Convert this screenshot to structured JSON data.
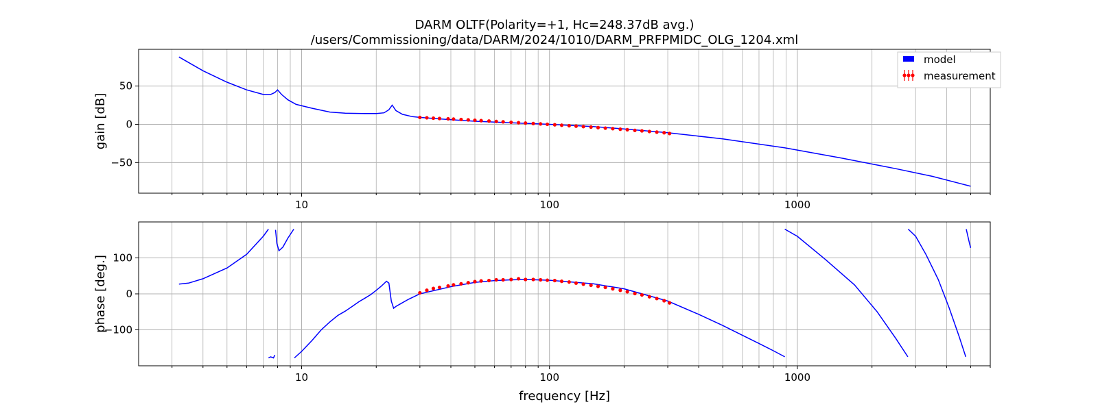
{
  "title": {
    "line1": "DARM OLTF(Polarity=+1,  Hc=248.37dB avg.)",
    "line2": "/users/Commissioning/data/DARM/2024/1010/DARM_PRFPMIDC_OLG_1204.xml"
  },
  "colors": {
    "model": "#0000ff",
    "measurement": "#ff0000",
    "grid": "#b0b0b0"
  },
  "legend": {
    "placement": "top-right",
    "model_label": "model",
    "measurement_label": "measurement"
  },
  "chart_data": [
    {
      "type": "line",
      "ylabel": "gain [dB]",
      "xscale": "log",
      "xlim": [
        2.2,
        6000
      ],
      "ylim": [
        -90,
        98
      ],
      "grid": true,
      "yticks": [
        50,
        0,
        -50
      ],
      "ytick_labels": [
        "50",
        "0",
        "−50"
      ],
      "xticks": [
        10,
        100,
        1000
      ],
      "xtick_labels": [
        "10",
        "100",
        "1000"
      ],
      "series": [
        {
          "name": "model",
          "x": [
            3.2,
            4,
            5,
            6,
            7,
            7.5,
            7.8,
            8.0,
            8.3,
            8.8,
            9.5,
            11,
            13,
            15,
            18,
            20,
            21.5,
            22.5,
            23.2,
            24,
            25.5,
            28,
            30,
            40,
            50,
            70,
            100,
            150,
            200,
            300,
            500,
            900,
            1500,
            2500,
            3500,
            5000
          ],
          "y": [
            88,
            70,
            55,
            45,
            39,
            39,
            41.5,
            45,
            39,
            32,
            26,
            21,
            16,
            14.5,
            14,
            14,
            15,
            19,
            25,
            18,
            13,
            10,
            9,
            6,
            4,
            2,
            0,
            -3,
            -6,
            -11,
            -19,
            -31,
            -44,
            -58,
            -68,
            -81
          ]
        },
        {
          "name": "measurement",
          "x": [
            30,
            32,
            34,
            36,
            39,
            41,
            44,
            47,
            50,
            53,
            57,
            61,
            65,
            70,
            75,
            80,
            86,
            92,
            98,
            105,
            112,
            120,
            128,
            137,
            147,
            157,
            168,
            180,
            193,
            206,
            221,
            236,
            253,
            271,
            290,
            305
          ],
          "y": [
            9,
            8.5,
            8,
            7.6,
            7.2,
            6.8,
            6.3,
            5.8,
            5.3,
            4.8,
            4.3,
            3.7,
            3.2,
            2.6,
            2.1,
            1.6,
            1.0,
            0.5,
            0,
            -0.6,
            -1.2,
            -1.8,
            -2.4,
            -3.0,
            -3.6,
            -4.3,
            -5.0,
            -5.7,
            -6.4,
            -7.1,
            -7.9,
            -8.6,
            -9.4,
            -10.2,
            -11.0,
            -12.0
          ]
        }
      ]
    },
    {
      "type": "line",
      "ylabel": "phase [deg.]",
      "xlabel": "frequency [Hz]",
      "xscale": "log",
      "xlim": [
        2.2,
        6000
      ],
      "ylim": [
        -200,
        200
      ],
      "grid": true,
      "yticks": [
        100,
        0,
        -100
      ],
      "ytick_labels": [
        "100",
        "0",
        "−100"
      ],
      "xticks": [
        10,
        100,
        1000
      ],
      "xtick_labels": [
        "10",
        "100",
        "1000"
      ],
      "series": [
        {
          "name": "model",
          "segments": [
            {
              "x": [
                3.2,
                3.5,
                4,
                5,
                6,
                7,
                7.35
              ],
              "y": [
                27,
                30,
                42,
                72,
                110,
                160,
                180
              ]
            },
            {
              "x": [
                7.35,
                7.5,
                7.7,
                7.8
              ],
              "y": [
                -178,
                -175,
                -178,
                -170
              ]
            },
            {
              "x": [
                7.85,
                7.95,
                8.1,
                8.4,
                8.8,
                9.3
              ],
              "y": [
                178,
                140,
                120,
                130,
                155,
                180
              ]
            },
            {
              "x": [
                9.35,
                10,
                11,
                12,
                13,
                14,
                15,
                16,
                17,
                18,
                19,
                20,
                21,
                22,
                22.5,
                23,
                23.5,
                24,
                25,
                27,
                30,
                40,
                50,
                60,
                70,
                80,
                100,
                150,
                200,
                300,
                400,
                500,
                600,
                700,
                800,
                890
              ],
              "y": [
                -178,
                -160,
                -130,
                -100,
                -78,
                -60,
                -48,
                -35,
                -22,
                -12,
                -2,
                10,
                22,
                35,
                30,
                -20,
                -40,
                -35,
                -28,
                -15,
                0,
                20,
                32,
                37,
                39,
                40,
                38,
                28,
                14,
                -20,
                -57,
                -88,
                -115,
                -138,
                -158,
                -175
              ]
            },
            {
              "x": [
                890,
                1000,
                1300,
                1700,
                2100,
                2500,
                2790
              ],
              "y": [
                180,
                160,
                95,
                25,
                -50,
                -125,
                -175
              ]
            },
            {
              "x": [
                2800,
                3000,
                3300,
                3700,
                4100,
                4500,
                4780
              ],
              "y": [
                180,
                160,
                110,
                40,
                -40,
                -120,
                -175
              ]
            },
            {
              "x": [
                4800,
                4950,
                5000
              ],
              "y": [
                180,
                140,
                128
              ]
            }
          ]
        },
        {
          "name": "measurement",
          "x": [
            30,
            32,
            34,
            36,
            39,
            41,
            44,
            47,
            50,
            53,
            57,
            61,
            65,
            70,
            75,
            80,
            86,
            92,
            98,
            105,
            112,
            120,
            128,
            137,
            147,
            157,
            168,
            180,
            193,
            206,
            221,
            236,
            253,
            271,
            290,
            305
          ],
          "y": [
            3,
            10,
            15,
            18,
            22,
            25,
            28,
            31,
            34,
            36,
            37,
            39,
            39,
            40,
            42,
            40,
            40,
            39,
            38,
            37,
            35,
            33,
            30,
            27,
            24,
            21,
            18,
            14,
            10,
            6,
            1,
            -3,
            -8,
            -13,
            -19,
            -25
          ]
        }
      ]
    }
  ]
}
